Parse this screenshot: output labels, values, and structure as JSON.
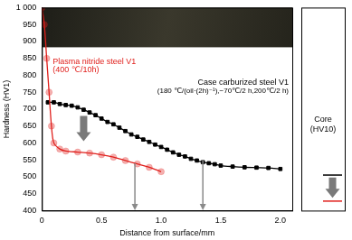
{
  "chart_data": {
    "type": "line",
    "x_label": "Distance from surface/mm",
    "y_label": "Hardness (HV1)",
    "xlim": [
      0,
      2.1
    ],
    "xticks": [
      0,
      0.5,
      {
        "value": 1,
        "label": "1.0"
      },
      1.5,
      {
        "value": 2,
        "label": "2.0"
      }
    ],
    "ylim": [
      400,
      1000
    ],
    "yticks": [
      400,
      450,
      500,
      550,
      600,
      650,
      700,
      750,
      800,
      850,
      900,
      950,
      {
        "value": 1000,
        "label": "1 000"
      }
    ],
    "grid": false,
    "series": [
      {
        "name": "Plasma nitride steel V1",
        "annotation": "(400 ℃/10h)",
        "color": "#e0201c",
        "marker": "circle",
        "x": [
          0,
          0.02,
          0.04,
          0.06,
          0.08,
          0.1,
          0.15,
          0.2,
          0.3,
          0.4,
          0.5,
          0.6,
          0.7,
          0.8,
          0.9,
          1.0
        ],
        "values": [
          1000,
          950,
          850,
          750,
          650,
          600,
          582,
          576,
          573,
          570,
          565,
          558,
          548,
          538,
          528,
          515
        ],
        "core": 428
      },
      {
        "name": "Case carburized steel V1",
        "annotation": "(180 ℃/(oil·(2h)⁻¹),−70℃/2 h,200℃/2 h)",
        "color": "#000000",
        "marker": "square",
        "x": [
          0.05,
          0.1,
          0.15,
          0.2,
          0.25,
          0.3,
          0.35,
          0.4,
          0.45,
          0.5,
          0.55,
          0.6,
          0.65,
          0.7,
          0.75,
          0.8,
          0.85,
          0.9,
          0.95,
          1.0,
          1.05,
          1.1,
          1.15,
          1.2,
          1.25,
          1.3,
          1.35,
          1.4,
          1.45,
          1.5,
          1.6,
          1.7,
          1.8,
          1.9,
          2.0
        ],
        "values": [
          720,
          720,
          715,
          712,
          710,
          705,
          698,
          690,
          682,
          672,
          662,
          655,
          645,
          635,
          625,
          618,
          610,
          603,
          595,
          588,
          580,
          572,
          565,
          560,
          553,
          548,
          543,
          540,
          537,
          533,
          530,
          528,
          527,
          526,
          523
        ],
        "core": 505
      }
    ],
    "core_label": [
      "Core",
      "(HV10)"
    ],
    "arrows": [
      {
        "x": 0.35,
        "from": 680,
        "to": 605,
        "style": "block"
      },
      {
        "x": 0.78,
        "from": 540,
        "to": 400,
        "style": "line"
      },
      {
        "x": 1.35,
        "from": 548,
        "to": 400,
        "style": "line"
      }
    ],
    "core_arrow": {
      "from": 498,
      "to": 438
    }
  }
}
